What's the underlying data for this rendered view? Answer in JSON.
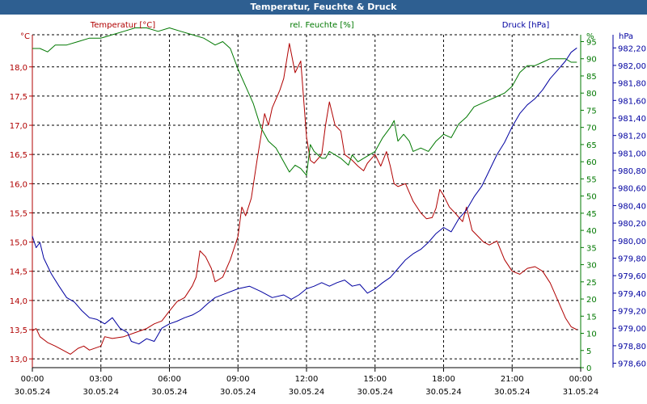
{
  "window": {
    "title": "Temperatur, Feuchte & Druck"
  },
  "colors": {
    "temperature": "#b00000",
    "humidity": "#007800",
    "pressure": "#0000a0",
    "grid": "#000000",
    "axis": "#000000"
  },
  "chart_data": {
    "type": "line",
    "title": "Temperatur, Feuchte & Druck",
    "grid": true,
    "x_axis": {
      "range": [
        "30.05.24 00:00",
        "31.05.24 00:00"
      ],
      "ticks": [
        {
          "time": "00:00",
          "date": "30.05.24"
        },
        {
          "time": "03:00",
          "date": "30.05.24"
        },
        {
          "time": "06:00",
          "date": "30.05.24"
        },
        {
          "time": "09:00",
          "date": "30.05.24"
        },
        {
          "time": "12:00",
          "date": "30.05.24"
        },
        {
          "time": "15:00",
          "date": "30.05.24"
        },
        {
          "time": "18:00",
          "date": "30.05.24"
        },
        {
          "time": "21:00",
          "date": "30.05.24"
        },
        {
          "time": "00:00",
          "date": "31.05.24"
        }
      ]
    },
    "axes": {
      "temperature": {
        "unit": "°C",
        "ylim": [
          12.85,
          18.55
        ],
        "ticks": [
          "13,0",
          "13,5",
          "14,0",
          "14,5",
          "15,0",
          "15,5",
          "16,0",
          "16,5",
          "17,0",
          "17,5",
          "18,0"
        ]
      },
      "humidity": {
        "unit": "%",
        "ylim": [
          0,
          97
        ],
        "ticks": [
          "0",
          "5",
          "10",
          "15",
          "20",
          "25",
          "30",
          "35",
          "40",
          "45",
          "50",
          "55",
          "60",
          "65",
          "70",
          "75",
          "80",
          "85",
          "90",
          "95"
        ]
      },
      "pressure": {
        "unit": "hPa",
        "ylim": [
          978.55,
          982.35
        ],
        "ticks": [
          "978,60",
          "978,80",
          "979,00",
          "979,20",
          "979,40",
          "979,60",
          "979,80",
          "980,00",
          "980,20",
          "980,40",
          "980,60",
          "980,80",
          "981,00",
          "981,20",
          "981,40",
          "981,60",
          "981,80",
          "982,00",
          "982,20"
        ]
      }
    },
    "series": [
      {
        "name": "Temperatur [°C]",
        "axis": "temperature",
        "points": [
          [
            "00:00",
            13.48
          ],
          [
            "00:10",
            13.52
          ],
          [
            "00:20",
            13.38
          ],
          [
            "00:40",
            13.28
          ],
          [
            "01:00",
            13.22
          ],
          [
            "01:20",
            13.15
          ],
          [
            "01:40",
            13.08
          ],
          [
            "02:00",
            13.18
          ],
          [
            "02:15",
            13.22
          ],
          [
            "02:30",
            13.15
          ],
          [
            "03:00",
            13.22
          ],
          [
            "03:10",
            13.38
          ],
          [
            "03:30",
            13.35
          ],
          [
            "04:00",
            13.38
          ],
          [
            "04:30",
            13.45
          ],
          [
            "05:00",
            13.52
          ],
          [
            "05:20",
            13.6
          ],
          [
            "05:40",
            13.65
          ],
          [
            "06:00",
            13.82
          ],
          [
            "06:20",
            13.98
          ],
          [
            "06:40",
            14.05
          ],
          [
            "07:00",
            14.25
          ],
          [
            "07:10",
            14.4
          ],
          [
            "07:20",
            14.85
          ],
          [
            "07:35",
            14.75
          ],
          [
            "07:50",
            14.55
          ],
          [
            "08:00",
            14.32
          ],
          [
            "08:20",
            14.4
          ],
          [
            "08:40",
            14.7
          ],
          [
            "09:00",
            15.1
          ],
          [
            "09:10",
            15.6
          ],
          [
            "09:20",
            15.45
          ],
          [
            "09:35",
            15.75
          ],
          [
            "09:50",
            16.4
          ],
          [
            "10:10",
            17.2
          ],
          [
            "10:20",
            17.0
          ],
          [
            "10:30",
            17.3
          ],
          [
            "10:50",
            17.6
          ],
          [
            "11:00",
            17.8
          ],
          [
            "11:15",
            18.4
          ],
          [
            "11:30",
            17.9
          ],
          [
            "11:45",
            18.1
          ],
          [
            "12:00",
            16.8
          ],
          [
            "12:10",
            16.4
          ],
          [
            "12:20",
            16.35
          ],
          [
            "12:40",
            16.5
          ],
          [
            "12:50",
            17.0
          ],
          [
            "13:00",
            17.4
          ],
          [
            "13:15",
            17.0
          ],
          [
            "13:30",
            16.9
          ],
          [
            "13:40",
            16.5
          ],
          [
            "14:00",
            16.4
          ],
          [
            "14:15",
            16.3
          ],
          [
            "14:30",
            16.22
          ],
          [
            "14:40",
            16.35
          ],
          [
            "15:00",
            16.5
          ],
          [
            "15:15",
            16.3
          ],
          [
            "15:30",
            16.55
          ],
          [
            "15:40",
            16.3
          ],
          [
            "15:50",
            16.0
          ],
          [
            "16:00",
            15.95
          ],
          [
            "16:20",
            16.0
          ],
          [
            "16:30",
            15.85
          ],
          [
            "16:40",
            15.7
          ],
          [
            "17:00",
            15.5
          ],
          [
            "17:15",
            15.4
          ],
          [
            "17:30",
            15.42
          ],
          [
            "17:40",
            15.58
          ],
          [
            "17:50",
            15.9
          ],
          [
            "18:00",
            15.8
          ],
          [
            "18:15",
            15.6
          ],
          [
            "18:30",
            15.5
          ],
          [
            "18:50",
            15.35
          ],
          [
            "19:00",
            15.6
          ],
          [
            "19:15",
            15.2
          ],
          [
            "19:30",
            15.1
          ],
          [
            "19:45",
            15.0
          ],
          [
            "20:00",
            14.95
          ],
          [
            "20:20",
            15.02
          ],
          [
            "20:40",
            14.7
          ],
          [
            "21:00",
            14.5
          ],
          [
            "21:20",
            14.45
          ],
          [
            "21:40",
            14.55
          ],
          [
            "22:00",
            14.58
          ],
          [
            "22:20",
            14.5
          ],
          [
            "22:40",
            14.3
          ],
          [
            "23:00",
            14.0
          ],
          [
            "23:20",
            13.7
          ],
          [
            "23:35",
            13.55
          ],
          [
            "23:50",
            13.5
          ]
        ]
      },
      {
        "name": "rel. Feuchte [%]",
        "axis": "humidity",
        "points": [
          [
            "00:00",
            93
          ],
          [
            "00:20",
            93
          ],
          [
            "00:40",
            92
          ],
          [
            "01:00",
            94
          ],
          [
            "01:30",
            94
          ],
          [
            "02:00",
            95
          ],
          [
            "02:30",
            96
          ],
          [
            "03:00",
            96
          ],
          [
            "03:30",
            97
          ],
          [
            "04:00",
            98
          ],
          [
            "04:30",
            99
          ],
          [
            "05:00",
            99
          ],
          [
            "05:30",
            98
          ],
          [
            "06:00",
            99
          ],
          [
            "06:30",
            98
          ],
          [
            "07:00",
            97
          ],
          [
            "07:30",
            96
          ],
          [
            "08:00",
            94
          ],
          [
            "08:20",
            95
          ],
          [
            "08:40",
            93
          ],
          [
            "09:00",
            87
          ],
          [
            "09:20",
            82
          ],
          [
            "09:40",
            77
          ],
          [
            "10:00",
            70
          ],
          [
            "10:20",
            66
          ],
          [
            "10:40",
            64
          ],
          [
            "11:00",
            60
          ],
          [
            "11:15",
            57
          ],
          [
            "11:30",
            59
          ],
          [
            "11:45",
            58
          ],
          [
            "12:00",
            56
          ],
          [
            "12:10",
            65
          ],
          [
            "12:20",
            63
          ],
          [
            "12:40",
            61
          ],
          [
            "12:50",
            61
          ],
          [
            "13:00",
            63
          ],
          [
            "13:30",
            61
          ],
          [
            "13:50",
            59
          ],
          [
            "14:00",
            62
          ],
          [
            "14:15",
            60
          ],
          [
            "14:30",
            61
          ],
          [
            "14:45",
            62
          ],
          [
            "15:00",
            63
          ],
          [
            "15:20",
            67
          ],
          [
            "15:40",
            70
          ],
          [
            "15:50",
            72
          ],
          [
            "16:00",
            66
          ],
          [
            "16:15",
            68
          ],
          [
            "16:30",
            66
          ],
          [
            "16:40",
            63
          ],
          [
            "17:00",
            64
          ],
          [
            "17:20",
            63
          ],
          [
            "17:40",
            66
          ],
          [
            "18:00",
            68
          ],
          [
            "18:20",
            67
          ],
          [
            "18:40",
            71
          ],
          [
            "19:00",
            73
          ],
          [
            "19:20",
            76
          ],
          [
            "19:40",
            77
          ],
          [
            "20:00",
            78
          ],
          [
            "20:20",
            79
          ],
          [
            "20:40",
            80
          ],
          [
            "21:00",
            82
          ],
          [
            "21:20",
            86
          ],
          [
            "21:40",
            88
          ],
          [
            "22:00",
            88
          ],
          [
            "22:20",
            89
          ],
          [
            "22:40",
            90
          ],
          [
            "23:00",
            90
          ],
          [
            "23:20",
            90
          ],
          [
            "23:35",
            89
          ],
          [
            "23:50",
            89
          ]
        ]
      },
      {
        "name": "Druck [hPa]",
        "axis": "pressure",
        "points": [
          [
            "00:00",
            980.05
          ],
          [
            "00:10",
            979.92
          ],
          [
            "00:20",
            979.98
          ],
          [
            "00:30",
            979.8
          ],
          [
            "00:50",
            979.62
          ],
          [
            "01:10",
            979.48
          ],
          [
            "01:30",
            979.35
          ],
          [
            "01:50",
            979.3
          ],
          [
            "02:10",
            979.2
          ],
          [
            "02:30",
            979.12
          ],
          [
            "02:50",
            979.1
          ],
          [
            "03:10",
            979.05
          ],
          [
            "03:30",
            979.12
          ],
          [
            "03:50",
            979.0
          ],
          [
            "04:10",
            978.95
          ],
          [
            "04:20",
            978.85
          ],
          [
            "04:40",
            978.82
          ],
          [
            "05:00",
            978.88
          ],
          [
            "05:20",
            978.85
          ],
          [
            "05:40",
            979.0
          ],
          [
            "06:00",
            979.05
          ],
          [
            "06:20",
            979.08
          ],
          [
            "06:40",
            979.12
          ],
          [
            "07:00",
            979.15
          ],
          [
            "07:20",
            979.2
          ],
          [
            "07:40",
            979.28
          ],
          [
            "08:00",
            979.35
          ],
          [
            "08:30",
            979.4
          ],
          [
            "09:00",
            979.45
          ],
          [
            "09:30",
            979.48
          ],
          [
            "10:00",
            979.42
          ],
          [
            "10:30",
            979.35
          ],
          [
            "11:00",
            979.38
          ],
          [
            "11:20",
            979.33
          ],
          [
            "11:40",
            979.38
          ],
          [
            "12:00",
            979.45
          ],
          [
            "12:20",
            979.48
          ],
          [
            "12:40",
            979.52
          ],
          [
            "13:00",
            979.48
          ],
          [
            "13:20",
            979.52
          ],
          [
            "13:40",
            979.55
          ],
          [
            "14:00",
            979.48
          ],
          [
            "14:20",
            979.5
          ],
          [
            "14:40",
            979.4
          ],
          [
            "15:00",
            979.45
          ],
          [
            "15:20",
            979.52
          ],
          [
            "15:40",
            979.58
          ],
          [
            "16:00",
            979.68
          ],
          [
            "16:20",
            979.78
          ],
          [
            "16:40",
            979.85
          ],
          [
            "17:00",
            979.9
          ],
          [
            "17:20",
            979.98
          ],
          [
            "17:40",
            980.08
          ],
          [
            "18:00",
            980.15
          ],
          [
            "18:20",
            980.1
          ],
          [
            "18:40",
            980.25
          ],
          [
            "19:00",
            980.35
          ],
          [
            "19:20",
            980.5
          ],
          [
            "19:40",
            980.62
          ],
          [
            "20:00",
            980.8
          ],
          [
            "20:20",
            980.98
          ],
          [
            "20:40",
            981.12
          ],
          [
            "21:00",
            981.3
          ],
          [
            "21:20",
            981.45
          ],
          [
            "21:40",
            981.55
          ],
          [
            "22:00",
            981.62
          ],
          [
            "22:20",
            981.72
          ],
          [
            "22:40",
            981.85
          ],
          [
            "23:00",
            981.95
          ],
          [
            "23:20",
            982.05
          ],
          [
            "23:35",
            982.15
          ],
          [
            "23:50",
            982.2
          ]
        ]
      }
    ]
  }
}
